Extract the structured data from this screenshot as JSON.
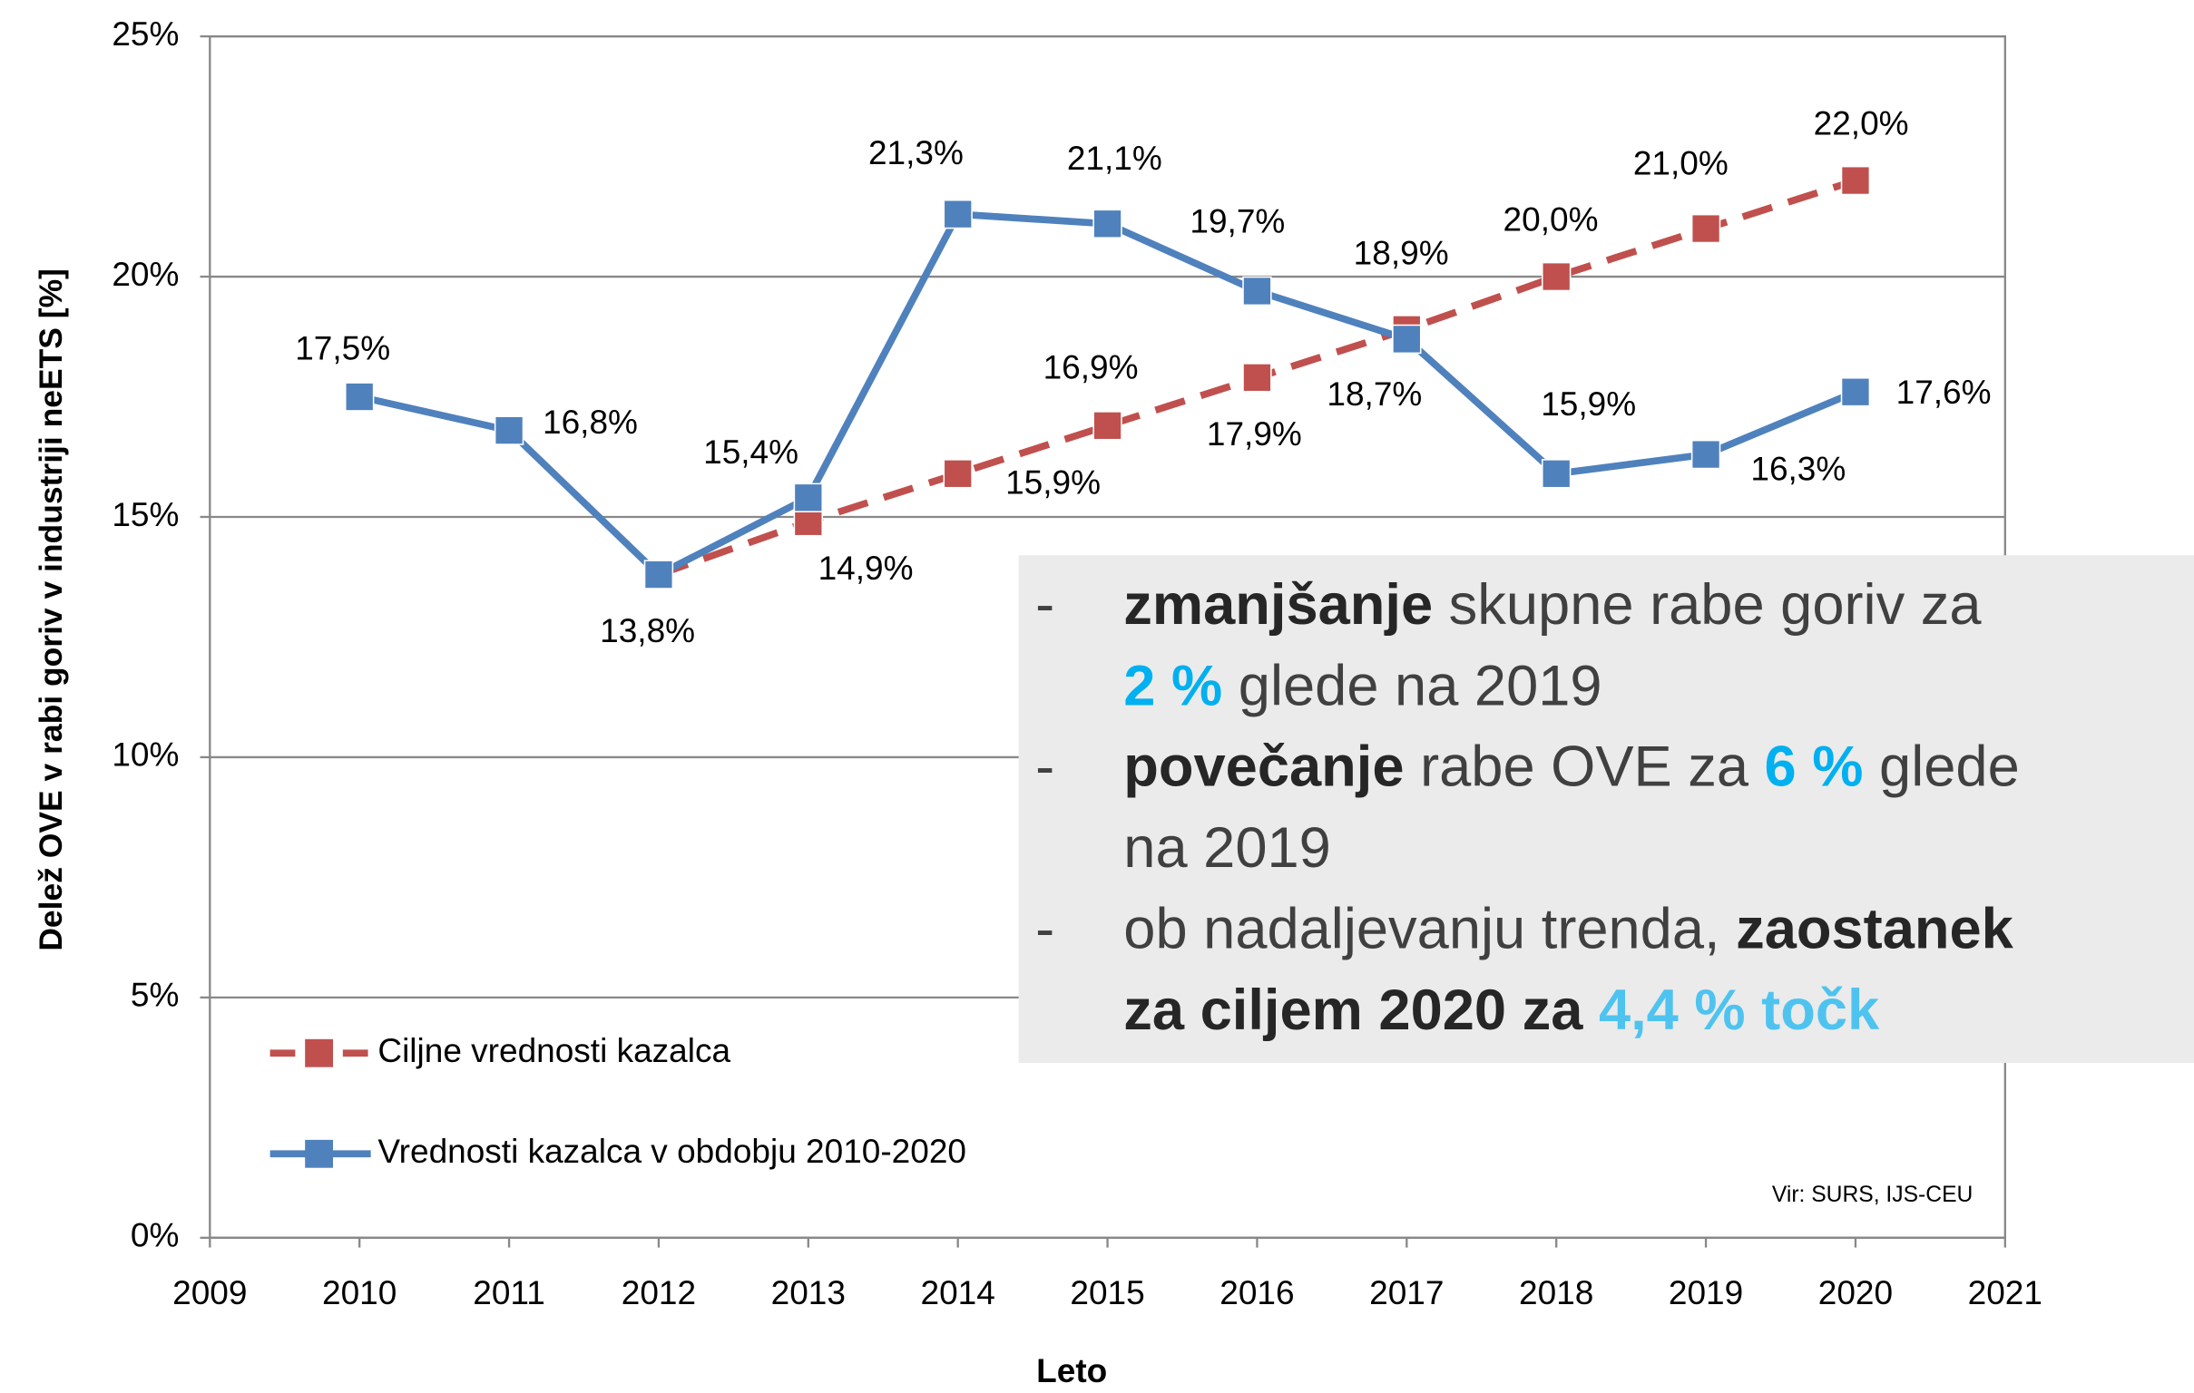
{
  "chart_data": {
    "type": "line",
    "x": [
      2010,
      2011,
      2012,
      2013,
      2014,
      2015,
      2016,
      2017,
      2018,
      2019,
      2020
    ],
    "series": [
      {
        "name": "Ciljne vrednosti kazalca",
        "color": "#c0504d",
        "dashed": true,
        "values": [
          null,
          null,
          13.8,
          14.9,
          15.9,
          16.9,
          17.9,
          18.9,
          20.0,
          21.0,
          22.0
        ],
        "value_labels": [
          null,
          null,
          null,
          "14,9%",
          "15,9%",
          "16,9%",
          "17,9%",
          "18,9%",
          "20,0%",
          "21,0%",
          "22,0%"
        ]
      },
      {
        "name": "Vrednosti kazalca v obdobju 2010-2020",
        "color": "#4f81bd",
        "dashed": false,
        "values": [
          17.5,
          16.8,
          13.8,
          15.4,
          21.3,
          21.1,
          19.7,
          18.7,
          15.9,
          16.3,
          17.6
        ],
        "value_labels": [
          "17,5%",
          "16,8%",
          "13,8%",
          "15,4%",
          "21,3%",
          "21,1%",
          "19,7%",
          "18,7%",
          "15,9%",
          "16,3%",
          "17,6%"
        ]
      }
    ],
    "xlim": [
      2009,
      2021
    ],
    "xticks": [
      2009,
      2010,
      2011,
      2012,
      2013,
      2014,
      2015,
      2016,
      2017,
      2018,
      2019,
      2020,
      2021
    ],
    "ylim": [
      0,
      25
    ],
    "yticks": [
      {
        "value": 0,
        "label": "0%"
      },
      {
        "value": 5,
        "label": "5%"
      },
      {
        "value": 10,
        "label": "10%"
      },
      {
        "value": 15,
        "label": "15%"
      },
      {
        "value": 20,
        "label": "20%"
      },
      {
        "value": 25,
        "label": "25%"
      }
    ],
    "xlabel": "Leto",
    "ylabel": "Delež OVE v rabi goriv v industriji neETS [%]",
    "grid": true,
    "legend": "lower left",
    "source": "Vir: SURS, IJS-CEU",
    "textbox": {
      "bullet": "-",
      "items": [
        {
          "lines": [
            [
              {
                "text": "zmanjšanje",
                "bold": true
              },
              {
                "text": " skupne rabe goriv za"
              }
            ],
            [
              {
                "text": "2 %",
                "bold": true,
                "color": "#00b0f0"
              },
              {
                "text": " glede na 2019"
              }
            ]
          ]
        },
        {
          "lines": [
            [
              {
                "text": "povečanje",
                "bold": true
              },
              {
                "text": " rabe OVE za "
              },
              {
                "text": "6 %",
                "bold": true,
                "color": "#00b0f0"
              },
              {
                "text": " glede"
              }
            ],
            [
              {
                "text": "na 2019"
              }
            ]
          ]
        },
        {
          "lines": [
            [
              {
                "text": "ob nadaljevanju trenda, "
              },
              {
                "text": "zaostanek",
                "bold": true
              }
            ],
            [
              {
                "text": "za ciljem 2020 za ",
                "bold": true
              },
              {
                "text": "4,4 % točk",
                "bold": true,
                "color": "#4fc3f0"
              }
            ]
          ]
        }
      ]
    }
  }
}
